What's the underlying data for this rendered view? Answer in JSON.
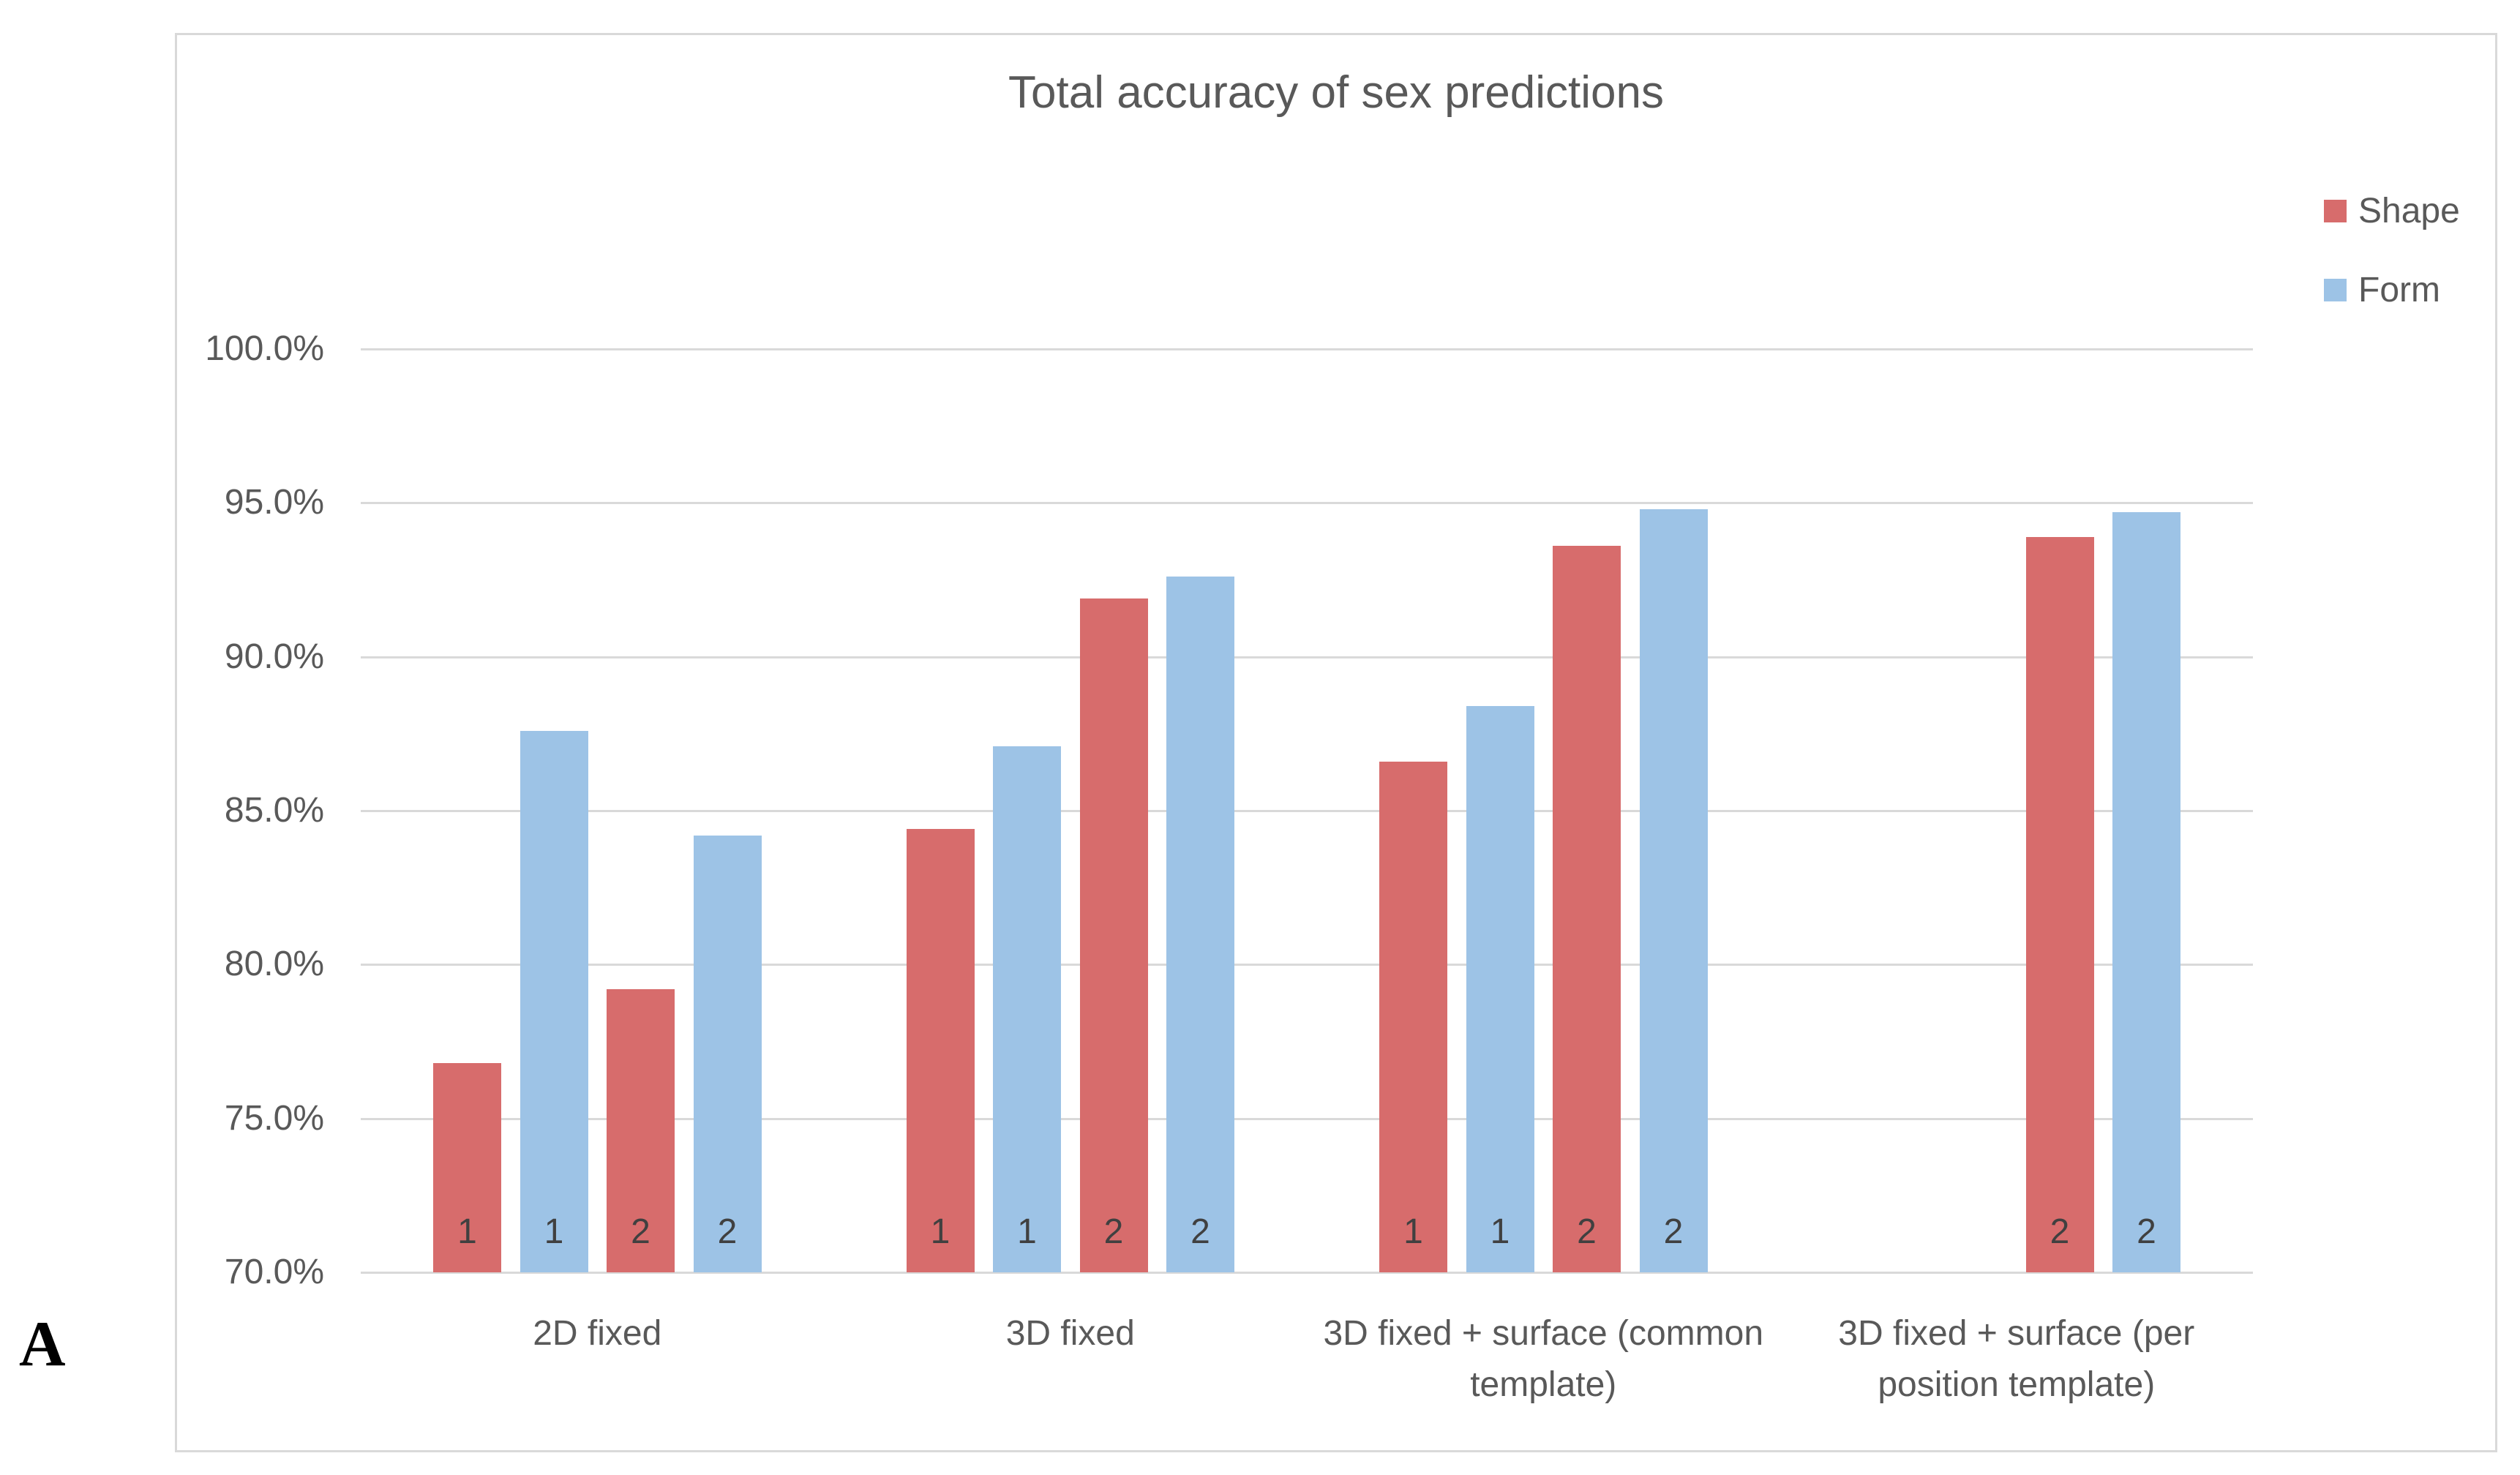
{
  "panel_label": "A",
  "chart_data": {
    "type": "bar",
    "title": "Total accuracy of sex predictions",
    "xlabel": "",
    "ylabel": "",
    "ylim": [
      70,
      100
    ],
    "grid": true,
    "legend_position": "top-right",
    "ytick_values": [
      100,
      95,
      90,
      85,
      80,
      75,
      70
    ],
    "ytick_labels": [
      "100.0%",
      "95.0%",
      "90.0%",
      "85.0%",
      "80.0%",
      "75.0%",
      "70.0%"
    ],
    "legend": [
      {
        "name": "Shape",
        "color": "#D76C6C"
      },
      {
        "name": "Form",
        "color": "#9DC3E6"
      }
    ],
    "categories": [
      "2D fixed",
      "3D fixed",
      "3D fixed + surface (common template)",
      "3D fixed + surface (per position template)"
    ],
    "groups": [
      {
        "category": "2D fixed",
        "bars": [
          {
            "slot": 0,
            "series": "Shape",
            "base_label": "1",
            "value": 76.8
          },
          {
            "slot": 1,
            "series": "Form",
            "base_label": "1",
            "value": 87.6
          },
          {
            "slot": 2,
            "series": "Shape",
            "base_label": "2",
            "value": 79.2
          },
          {
            "slot": 3,
            "series": "Form",
            "base_label": "2",
            "value": 84.2
          }
        ]
      },
      {
        "category": "3D fixed",
        "bars": [
          {
            "slot": 0,
            "series": "Shape",
            "base_label": "1",
            "value": 84.4
          },
          {
            "slot": 1,
            "series": "Form",
            "base_label": "1",
            "value": 87.1
          },
          {
            "slot": 2,
            "series": "Shape",
            "base_label": "2",
            "value": 91.9
          },
          {
            "slot": 3,
            "series": "Form",
            "base_label": "2",
            "value": 92.6
          }
        ]
      },
      {
        "category": "3D fixed + surface (common template)",
        "bars": [
          {
            "slot": 0,
            "series": "Shape",
            "base_label": "1",
            "value": 86.6
          },
          {
            "slot": 1,
            "series": "Form",
            "base_label": "1",
            "value": 88.4
          },
          {
            "slot": 2,
            "series": "Shape",
            "base_label": "2",
            "value": 93.6
          },
          {
            "slot": 3,
            "series": "Form",
            "base_label": "2",
            "value": 94.8
          }
        ]
      },
      {
        "category": "3D fixed + surface (per position template)",
        "bars": [
          {
            "slot": 2,
            "series": "Shape",
            "base_label": "2",
            "value": 93.9
          },
          {
            "slot": 3,
            "series": "Form",
            "base_label": "2",
            "value": 94.7
          }
        ]
      }
    ],
    "colors": {
      "grid": "#D9D9D9",
      "axis_text": "#595959",
      "title_text": "#595959",
      "bar_base_label": "#404040",
      "chart_border": "#D9D9D9"
    }
  }
}
